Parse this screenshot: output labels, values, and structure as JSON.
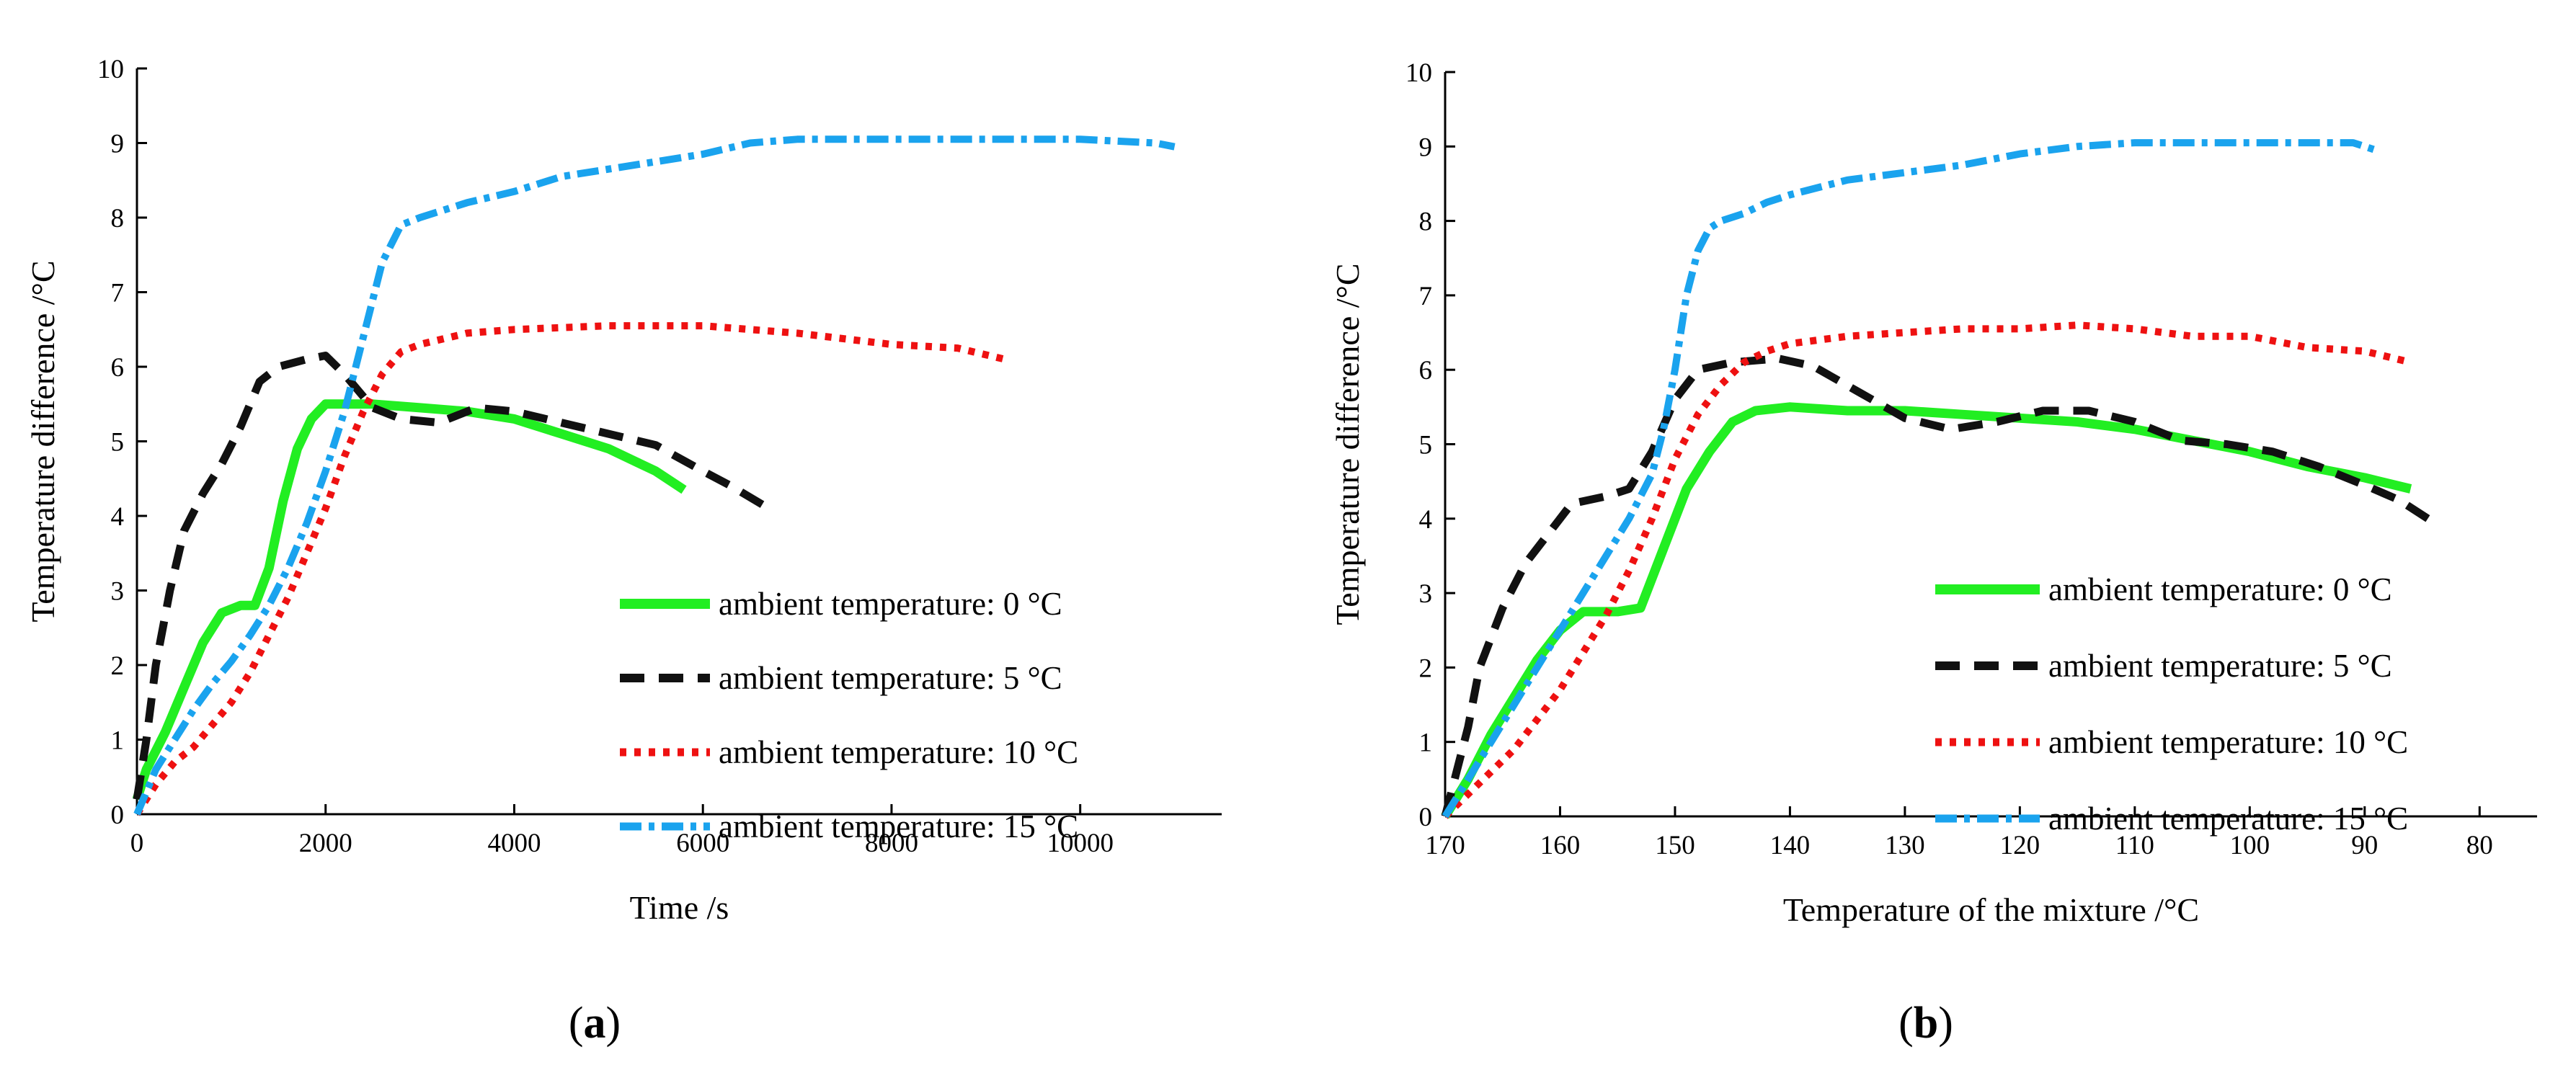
{
  "chart_data": [
    {
      "type": "line",
      "panel_label": {
        "open": "(",
        "letter": "a",
        "close": ")"
      },
      "xlabel": "Time /s",
      "ylabel": "Temperature difference /°C",
      "xlim": [
        0,
        11500
      ],
      "ylim": [
        0,
        10
      ],
      "x_ticks": [
        "0",
        "2000",
        "4000",
        "6000",
        "8000",
        "10000"
      ],
      "y_ticks": [
        "0",
        "1",
        "2",
        "3",
        "4",
        "5",
        "6",
        "7",
        "8",
        "9",
        "10"
      ],
      "legend_position": "bottom-right",
      "grid": false,
      "series": [
        {
          "name": "ambient temperature: 0 °C",
          "color": "#22ee22",
          "style": "solid",
          "points": [
            [
              0,
              0.2
            ],
            [
              100,
              0.6
            ],
            [
              300,
              1.1
            ],
            [
              500,
              1.7
            ],
            [
              700,
              2.3
            ],
            [
              900,
              2.7
            ],
            [
              1100,
              2.8
            ],
            [
              1250,
              2.8
            ],
            [
              1400,
              3.3
            ],
            [
              1550,
              4.2
            ],
            [
              1700,
              4.9
            ],
            [
              1850,
              5.3
            ],
            [
              2000,
              5.5
            ],
            [
              2500,
              5.5
            ],
            [
              3000,
              5.45
            ],
            [
              3500,
              5.4
            ],
            [
              4000,
              5.3
            ],
            [
              4500,
              5.1
            ],
            [
              5000,
              4.9
            ],
            [
              5500,
              4.6
            ],
            [
              5800,
              4.35
            ]
          ]
        },
        {
          "name": "ambient temperature: 5 °C",
          "color": "#111111",
          "style": "dash",
          "points": [
            [
              0,
              0.2
            ],
            [
              100,
              1.0
            ],
            [
              200,
              2.0
            ],
            [
              350,
              3.0
            ],
            [
              500,
              3.8
            ],
            [
              700,
              4.3
            ],
            [
              900,
              4.7
            ],
            [
              1100,
              5.2
            ],
            [
              1300,
              5.8
            ],
            [
              1500,
              6.0
            ],
            [
              1800,
              6.1
            ],
            [
              2000,
              6.15
            ],
            [
              2200,
              5.9
            ],
            [
              2500,
              5.45
            ],
            [
              2800,
              5.3
            ],
            [
              3200,
              5.25
            ],
            [
              3600,
              5.45
            ],
            [
              4000,
              5.4
            ],
            [
              4500,
              5.25
            ],
            [
              5000,
              5.1
            ],
            [
              5500,
              4.95
            ],
            [
              6000,
              4.6
            ],
            [
              6300,
              4.4
            ],
            [
              6700,
              4.1
            ]
          ]
        },
        {
          "name": "ambient temperature: 10 °C",
          "color": "#ee1111",
          "style": "dot",
          "points": [
            [
              0,
              0
            ],
            [
              200,
              0.4
            ],
            [
              400,
              0.7
            ],
            [
              600,
              0.9
            ],
            [
              800,
              1.2
            ],
            [
              1000,
              1.5
            ],
            [
              1200,
              1.9
            ],
            [
              1400,
              2.4
            ],
            [
              1600,
              2.9
            ],
            [
              1800,
              3.5
            ],
            [
              2000,
              4.1
            ],
            [
              2200,
              4.8
            ],
            [
              2400,
              5.4
            ],
            [
              2600,
              5.9
            ],
            [
              2800,
              6.2
            ],
            [
              3000,
              6.3
            ],
            [
              3500,
              6.45
            ],
            [
              4000,
              6.5
            ],
            [
              5000,
              6.55
            ],
            [
              6000,
              6.55
            ],
            [
              7000,
              6.45
            ],
            [
              8000,
              6.3
            ],
            [
              8700,
              6.25
            ],
            [
              9200,
              6.1
            ]
          ]
        },
        {
          "name": "ambient temperature: 15 °C",
          "color": "#1aa3ee",
          "style": "dashdot",
          "points": [
            [
              0,
              0
            ],
            [
              200,
              0.6
            ],
            [
              400,
              1.0
            ],
            [
              600,
              1.4
            ],
            [
              800,
              1.75
            ],
            [
              1000,
              2.05
            ],
            [
              1200,
              2.4
            ],
            [
              1400,
              2.8
            ],
            [
              1600,
              3.3
            ],
            [
              1800,
              3.9
            ],
            [
              2000,
              4.6
            ],
            [
              2200,
              5.4
            ],
            [
              2400,
              6.4
            ],
            [
              2600,
              7.4
            ],
            [
              2800,
              7.9
            ],
            [
              3000,
              8.0
            ],
            [
              3500,
              8.2
            ],
            [
              4000,
              8.35
            ],
            [
              4500,
              8.55
            ],
            [
              5000,
              8.65
            ],
            [
              5500,
              8.75
            ],
            [
              6000,
              8.85
            ],
            [
              6500,
              9.0
            ],
            [
              7000,
              9.05
            ],
            [
              8000,
              9.05
            ],
            [
              9000,
              9.05
            ],
            [
              10000,
              9.05
            ],
            [
              10800,
              9.0
            ],
            [
              11000,
              8.95
            ]
          ]
        }
      ]
    },
    {
      "type": "line",
      "panel_label": {
        "open": "(",
        "letter": "b",
        "close": ")"
      },
      "xlabel": "Temperature of the mixture /°C",
      "ylabel": "Temperature difference /°C",
      "xlim": [
        170,
        75
      ],
      "ylim": [
        0,
        10
      ],
      "x_reversed": true,
      "x_ticks": [
        "170",
        "160",
        "150",
        "140",
        "130",
        "120",
        "110",
        "100",
        "90",
        "80"
      ],
      "y_ticks": [
        "0",
        "1",
        "2",
        "3",
        "4",
        "5",
        "6",
        "7",
        "8",
        "9",
        "10"
      ],
      "legend_position": "bottom-right",
      "grid": false,
      "series": [
        {
          "name": "ambient temperature: 0 °C",
          "color": "#22ee22",
          "style": "solid",
          "points": [
            [
              170,
              0
            ],
            [
              168,
              0.5
            ],
            [
              166,
              1.1
            ],
            [
              164,
              1.6
            ],
            [
              162,
              2.1
            ],
            [
              160,
              2.5
            ],
            [
              158,
              2.75
            ],
            [
              155,
              2.75
            ],
            [
              153,
              2.8
            ],
            [
              151,
              3.6
            ],
            [
              149,
              4.4
            ],
            [
              147,
              4.9
            ],
            [
              145,
              5.3
            ],
            [
              143,
              5.45
            ],
            [
              140,
              5.5
            ],
            [
              135,
              5.45
            ],
            [
              130,
              5.45
            ],
            [
              125,
              5.4
            ],
            [
              120,
              5.35
            ],
            [
              115,
              5.3
            ],
            [
              110,
              5.2
            ],
            [
              105,
              5.05
            ],
            [
              100,
              4.9
            ],
            [
              95,
              4.7
            ],
            [
              90,
              4.55
            ],
            [
              86,
              4.4
            ]
          ]
        },
        {
          "name": "ambient temperature: 5 °C",
          "color": "#111111",
          "style": "dash",
          "points": [
            [
              170,
              0
            ],
            [
              169,
              0.6
            ],
            [
              168,
              1.2
            ],
            [
              167,
              2.0
            ],
            [
              165,
              2.8
            ],
            [
              163,
              3.4
            ],
            [
              161,
              3.8
            ],
            [
              159,
              4.2
            ],
            [
              156,
              4.3
            ],
            [
              154,
              4.4
            ],
            [
              152,
              4.9
            ],
            [
              150,
              5.6
            ],
            [
              148,
              6.0
            ],
            [
              145,
              6.1
            ],
            [
              141,
              6.15
            ],
            [
              138,
              6.05
            ],
            [
              134,
              5.7
            ],
            [
              130,
              5.35
            ],
            [
              126,
              5.2
            ],
            [
              122,
              5.3
            ],
            [
              118,
              5.45
            ],
            [
              114,
              5.45
            ],
            [
              110,
              5.3
            ],
            [
              106,
              5.05
            ],
            [
              102,
              5.0
            ],
            [
              98,
              4.9
            ],
            [
              94,
              4.7
            ],
            [
              90,
              4.45
            ],
            [
              87,
              4.25
            ],
            [
              84,
              3.95
            ]
          ]
        },
        {
          "name": "ambient temperature: 10 °C",
          "color": "#ee1111",
          "style": "dot",
          "points": [
            [
              170,
              0
            ],
            [
              168,
              0.3
            ],
            [
              166,
              0.6
            ],
            [
              164,
              0.9
            ],
            [
              162,
              1.3
            ],
            [
              160,
              1.7
            ],
            [
              158,
              2.2
            ],
            [
              156,
              2.7
            ],
            [
              154,
              3.3
            ],
            [
              152,
              4.0
            ],
            [
              150,
              4.8
            ],
            [
              148,
              5.4
            ],
            [
              146,
              5.8
            ],
            [
              144,
              6.1
            ],
            [
              142,
              6.25
            ],
            [
              140,
              6.35
            ],
            [
              135,
              6.45
            ],
            [
              130,
              6.5
            ],
            [
              125,
              6.55
            ],
            [
              120,
              6.55
            ],
            [
              115,
              6.6
            ],
            [
              110,
              6.55
            ],
            [
              105,
              6.45
            ],
            [
              100,
              6.45
            ],
            [
              95,
              6.3
            ],
            [
              90,
              6.25
            ],
            [
              86,
              6.1
            ]
          ]
        },
        {
          "name": "ambient temperature: 15 °C",
          "color": "#1aa3ee",
          "style": "dashdot",
          "points": [
            [
              170,
              0
            ],
            [
              168,
              0.5
            ],
            [
              166,
              1.0
            ],
            [
              164,
              1.5
            ],
            [
              162,
              2.0
            ],
            [
              160,
              2.5
            ],
            [
              158,
              3.0
            ],
            [
              156,
              3.5
            ],
            [
              154,
              4.0
            ],
            [
              152,
              4.6
            ],
            [
              151,
              5.2
            ],
            [
              150,
              6.0
            ],
            [
              149,
              7.0
            ],
            [
              148,
              7.6
            ],
            [
              147,
              7.9
            ],
            [
              146,
              8.0
            ],
            [
              144,
              8.1
            ],
            [
              142,
              8.25
            ],
            [
              140,
              8.35
            ],
            [
              135,
              8.55
            ],
            [
              130,
              8.65
            ],
            [
              125,
              8.75
            ],
            [
              120,
              8.9
            ],
            [
              115,
              9.0
            ],
            [
              110,
              9.05
            ],
            [
              105,
              9.05
            ],
            [
              100,
              9.05
            ],
            [
              95,
              9.05
            ],
            [
              91,
              9.05
            ],
            [
              89,
              8.95
            ]
          ]
        }
      ]
    }
  ]
}
